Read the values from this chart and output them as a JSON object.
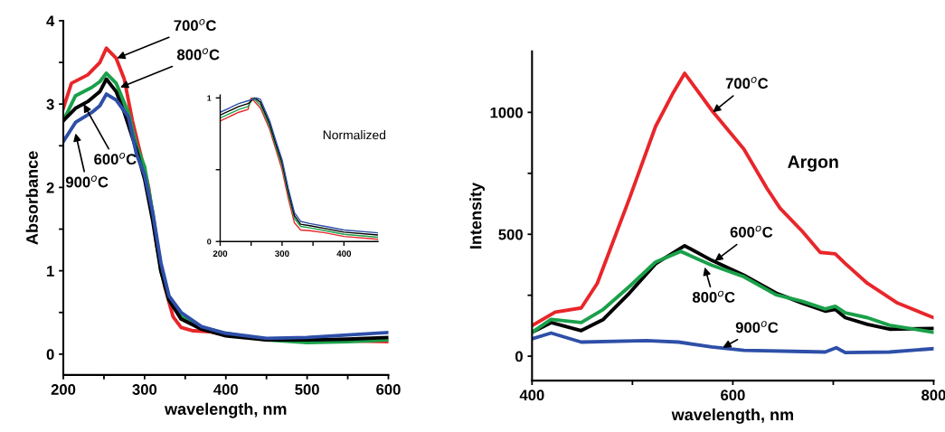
{
  "chart_data": [
    {
      "type": "line",
      "xlabel": "wavelength, nm",
      "ylabel": "Absorbance",
      "xlim": [
        200,
        600
      ],
      "ylim": [
        -0.25,
        4
      ],
      "xticks": [
        200,
        {
          "value": 250,
          "label": null
        },
        300,
        {
          "value": 350,
          "label": null
        },
        400,
        {
          "value": 450,
          "label": null
        },
        500,
        {
          "value": 550,
          "label": null
        },
        600
      ],
      "yticks": [
        0,
        {
          "value": 0.5,
          "label": null
        },
        1,
        {
          "value": 1.5,
          "label": null
        },
        2,
        {
          "value": 2.5,
          "label": null
        },
        3,
        {
          "value": 3.5,
          "label": null
        },
        4
      ],
      "grid": false,
      "legend": false,
      "line_style": "solid",
      "marker": "none",
      "series": [
        {
          "color": "#e8262a",
          "x": [
            200,
            210,
            230,
            245,
            253,
            265,
            275,
            285,
            295,
            305,
            315,
            325,
            335,
            345,
            360,
            380,
            400,
            450,
            500,
            550,
            600
          ],
          "values": [
            2.95,
            3.25,
            3.35,
            3.5,
            3.67,
            3.55,
            3.3,
            2.8,
            2.4,
            2.0,
            1.3,
            0.8,
            0.45,
            0.32,
            0.28,
            0.27,
            0.23,
            0.18,
            0.17,
            0.16,
            0.15
          ]
        },
        {
          "color": "#1aa04a",
          "x": [
            200,
            215,
            235,
            245,
            253,
            265,
            280,
            290,
            300,
            310,
            320,
            330,
            345,
            370,
            400,
            450,
            500,
            550,
            600
          ],
          "values": [
            2.8,
            3.1,
            3.2,
            3.27,
            3.37,
            3.25,
            2.9,
            2.5,
            2.25,
            1.7,
            1.0,
            0.65,
            0.45,
            0.32,
            0.25,
            0.17,
            0.14,
            0.15,
            0.17
          ]
        },
        {
          "color": "#000000",
          "x": [
            200,
            215,
            230,
            245,
            253,
            265,
            275,
            290,
            300,
            310,
            320,
            330,
            345,
            370,
            400,
            450,
            500,
            550,
            600
          ],
          "values": [
            2.8,
            2.95,
            3.03,
            3.15,
            3.3,
            3.15,
            2.9,
            2.45,
            2.1,
            1.6,
            1.0,
            0.65,
            0.42,
            0.3,
            0.22,
            0.17,
            0.17,
            0.18,
            0.2
          ]
        },
        {
          "color": "#2e4fa8",
          "x": [
            200,
            215,
            235,
            245,
            253,
            265,
            280,
            290,
            300,
            310,
            320,
            330,
            345,
            370,
            400,
            450,
            500,
            550,
            600
          ],
          "values": [
            2.55,
            2.78,
            2.9,
            2.98,
            3.12,
            3.05,
            2.85,
            2.4,
            2.15,
            1.7,
            1.1,
            0.7,
            0.5,
            0.33,
            0.25,
            0.19,
            0.2,
            0.23,
            0.26
          ]
        }
      ],
      "annotations": [
        {
          "text": "700$^{o}$C",
          "x": 266,
          "y": 3.55
        },
        {
          "text": "800$^{o}$C",
          "x": 270,
          "y": 3.2
        },
        {
          "text": "600$^{o}$C",
          "x": 225,
          "y": 3.0
        },
        {
          "text": "900$^{o}$C",
          "x": 215,
          "y": 2.65
        }
      ]
    },
    {
      "type": "line",
      "xlim": [
        200,
        455
      ],
      "ylim": [
        0,
        1.02
      ],
      "xticks": [
        200,
        {
          "value": 250,
          "label": null
        },
        300,
        {
          "value": 350,
          "label": null
        },
        400
      ],
      "yticks": [
        0,
        {
          "value": 0.5,
          "label": null
        },
        1
      ],
      "grid": false,
      "legend": false,
      "line_style": "solid",
      "marker": "none",
      "series": [
        {
          "color": "#e8262a",
          "x": [
            200,
            230,
            245,
            250,
            265,
            280,
            290,
            300,
            310,
            320,
            330,
            345,
            370,
            400,
            455
          ],
          "values": [
            0.84,
            0.9,
            0.92,
            1.0,
            0.93,
            0.78,
            0.64,
            0.5,
            0.3,
            0.13,
            0.08,
            0.075,
            0.06,
            0.035,
            0.015
          ]
        },
        {
          "color": "#1aa04a",
          "x": [
            200,
            230,
            245,
            253,
            265,
            280,
            290,
            300,
            310,
            320,
            330,
            345,
            370,
            400,
            455
          ],
          "values": [
            0.86,
            0.92,
            0.94,
            1.0,
            0.95,
            0.8,
            0.66,
            0.53,
            0.33,
            0.16,
            0.105,
            0.095,
            0.075,
            0.05,
            0.03
          ]
        },
        {
          "color": "#000000",
          "x": [
            200,
            230,
            245,
            256,
            265,
            280,
            290,
            300,
            310,
            320,
            330,
            345,
            370,
            400,
            455
          ],
          "values": [
            0.88,
            0.94,
            0.96,
            1.0,
            0.97,
            0.82,
            0.68,
            0.55,
            0.35,
            0.18,
            0.12,
            0.11,
            0.09,
            0.065,
            0.045
          ]
        },
        {
          "color": "#2e4fa8",
          "x": [
            200,
            230,
            245,
            259,
            265,
            280,
            290,
            300,
            310,
            320,
            330,
            345,
            370,
            400,
            455
          ],
          "values": [
            0.9,
            0.96,
            0.98,
            1.0,
            0.99,
            0.84,
            0.7,
            0.57,
            0.37,
            0.2,
            0.14,
            0.125,
            0.105,
            0.08,
            0.06
          ]
        }
      ],
      "annotations": [
        "Normalized"
      ]
    },
    {
      "type": "line",
      "xlabel": "wavelength, nm",
      "ylabel": "Intensity",
      "xlim": [
        400,
        800
      ],
      "ylim": [
        -100,
        1250
      ],
      "xticks": [
        400,
        {
          "value": 500,
          "label": null
        },
        600,
        {
          "value": 700,
          "label": null
        },
        800
      ],
      "yticks": [
        0,
        {
          "value": 250,
          "label": null
        },
        500,
        {
          "value": 750,
          "label": null
        },
        1000
      ],
      "grid": false,
      "legend": false,
      "line_style": "solid",
      "marker": "none",
      "series": [
        {
          "color": "#e8262a",
          "x": [
            400,
            423,
            449,
            465,
            497,
            523,
            540,
            552,
            580,
            611,
            634,
            647,
            669,
            687,
            702,
            712,
            734,
            764,
            800
          ],
          "values": [
            125,
            181,
            198,
            299,
            647,
            942,
            1076,
            1160,
            1003,
            849,
            688,
            607,
            513,
            426,
            420,
            380,
            299,
            218,
            158
          ]
        },
        {
          "color": "#000000",
          "x": [
            400,
            419,
            449,
            471,
            497,
            523,
            552,
            579,
            611,
            643,
            669,
            692,
            702,
            712,
            734,
            756,
            800
          ],
          "values": [
            98,
            138,
            105,
            151,
            259,
            379,
            453,
            393,
            332,
            259,
            218,
            185,
            192,
            158,
            131,
            111,
            114
          ]
        },
        {
          "color": "#1aa04a",
          "x": [
            400,
            419,
            449,
            471,
            497,
            523,
            548,
            579,
            611,
            643,
            669,
            692,
            702,
            712,
            734,
            756,
            800
          ],
          "values": [
            98,
            151,
            138,
            192,
            286,
            386,
            430,
            373,
            326,
            252,
            225,
            194,
            205,
            178,
            158,
            127,
            98
          ]
        },
        {
          "color": "#2e4fa8",
          "x": [
            400,
            419,
            449,
            514,
            546,
            579,
            611,
            660,
            692,
            703,
            712,
            756,
            800
          ],
          "values": [
            71,
            95,
            58,
            64,
            58,
            38,
            24,
            20,
            17,
            35,
            15,
            17,
            31
          ]
        }
      ],
      "annotations": [
        {
          "text": "700$^{o}$C",
          "x": 580,
          "y": 1000
        },
        {
          "text": "600$^{o}$C",
          "x": 582,
          "y": 390
        },
        {
          "text": "800$^{o}$C",
          "x": 572,
          "y": 365
        },
        {
          "text": "900$^{o}$C",
          "x": 590,
          "y": 35
        },
        "Argon"
      ]
    }
  ]
}
